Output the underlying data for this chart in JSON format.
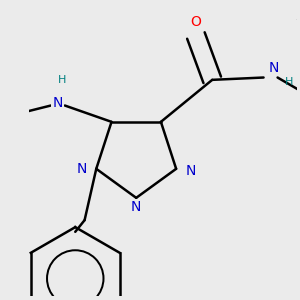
{
  "bg_color": "#ebebeb",
  "atom_colors": {
    "N": "#0000cc",
    "O": "#ff0000",
    "C": "#000000",
    "H": "#008080"
  },
  "bond_color": "#000000",
  "bond_width": 1.8,
  "font_size_atom": 10,
  "font_size_H": 8
}
